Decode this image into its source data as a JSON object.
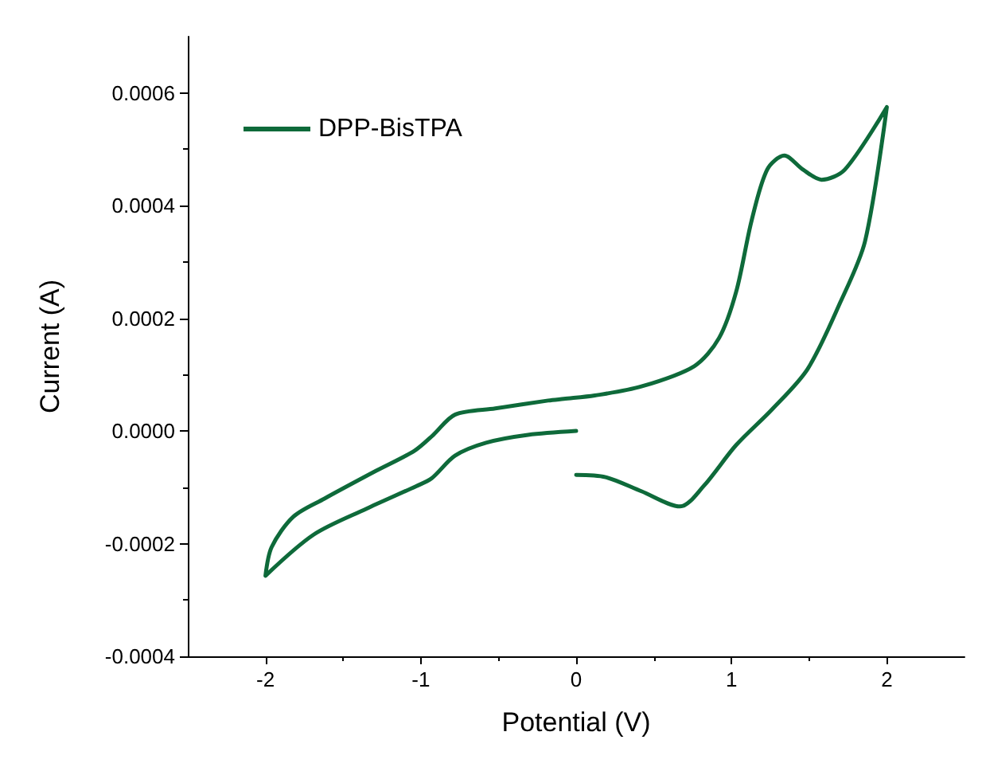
{
  "chart_data": {
    "type": "line",
    "xlabel": "Potential (V)",
    "ylabel": "Current (A)",
    "xlim": [
      -2.5,
      2.5
    ],
    "xticks": [
      -2,
      -1,
      0,
      1,
      2
    ],
    "ylim": [
      -0.0004,
      0.0007
    ],
    "yticks": [
      {
        "value": -0.0004,
        "label": "-0.0004"
      },
      {
        "value": -0.0002,
        "label": "-0.0002"
      },
      {
        "value": 0,
        "label": "0.0000"
      },
      {
        "value": 0.0002,
        "label": "0.0002"
      },
      {
        "value": 0.0004,
        "label": "0.0004"
      },
      {
        "value": 0.0006,
        "label": "0.0006"
      }
    ],
    "grid": false,
    "legend": "top left",
    "marker": "none",
    "line_style": "solid",
    "series": [
      {
        "name": "DPP-BisTPA",
        "color": "#0e6a3a",
        "x": [
          0,
          -0.31,
          -0.58,
          -0.78,
          -0.93,
          -1.03,
          -1.35,
          -1.69,
          -2,
          -1.96,
          -1.82,
          -1.62,
          -1.29,
          -1.04,
          -0.92,
          -0.78,
          -0.52,
          -0.18,
          -0.08,
          0.12,
          0.42,
          0.76,
          0.92,
          1.03,
          1.13,
          1.23,
          1.34,
          1.46,
          1.58,
          1.73,
          2,
          1.86,
          1.7,
          1.49,
          1.26,
          1.03,
          0.82,
          0.67,
          0.42,
          0.19,
          0
        ],
        "values": [
          0,
          -7e-06,
          -2.1e-05,
          -4.4e-05,
          -8.4e-05,
          -9.8e-05,
          -0.000138,
          -0.000184,
          -0.000257,
          -0.000206,
          -0.000152,
          -0.00012,
          -7.1e-05,
          -3.5e-05,
          -7e-06,
          2.9e-05,
          4e-05,
          5.4e-05,
          5.7e-05,
          6.3e-05,
          7.9e-05,
          0.000115,
          0.000165,
          0.000247,
          0.000374,
          0.000464,
          0.000489,
          0.000464,
          0.000446,
          0.000464,
          0.000575,
          0.000337,
          0.000228,
          0.00011,
          3.8e-05,
          -2.5e-05,
          -9.8e-05,
          -0.000134,
          -0.000107,
          -8.2e-05,
          -7.8e-05
        ]
      }
    ]
  }
}
